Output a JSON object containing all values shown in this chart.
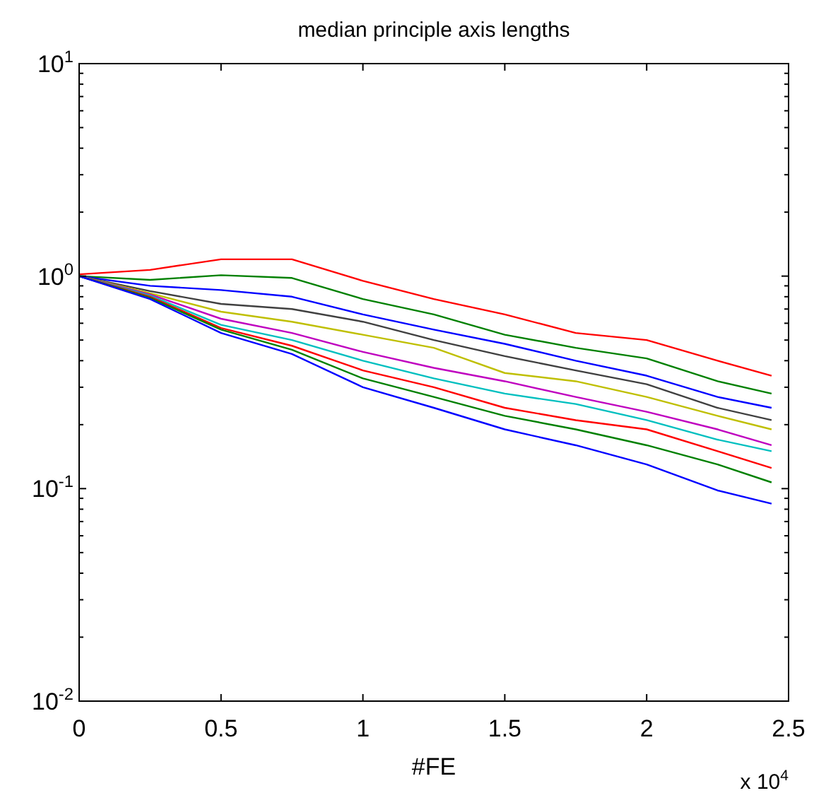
{
  "chart_data": {
    "type": "line",
    "title": "median principle axis lengths",
    "xlabel": "#FE",
    "log": "y",
    "grid": false,
    "x": [
      0,
      0.25,
      0.5,
      0.75,
      1,
      1.25,
      1.5,
      1.75,
      2,
      2.25,
      2.44
    ],
    "xlim": [
      0,
      2.5
    ],
    "xticks": [
      0,
      0.5,
      1,
      1.5,
      2,
      2.5
    ],
    "ylim": [
      0.01,
      10
    ],
    "yticks": [
      {
        "value": 0.01,
        "label": "10$^{-2}$"
      },
      {
        "value": 0.02,
        "label": null
      },
      {
        "value": 0.03,
        "label": null
      },
      {
        "value": 0.04,
        "label": null
      },
      {
        "value": 0.05,
        "label": null
      },
      {
        "value": 0.06,
        "label": null
      },
      {
        "value": 0.07,
        "label": null
      },
      {
        "value": 0.08,
        "label": null
      },
      {
        "value": 0.09,
        "label": null
      },
      {
        "value": 0.1,
        "label": "10$^{-1}$"
      },
      {
        "value": 0.2,
        "label": null
      },
      {
        "value": 0.3,
        "label": null
      },
      {
        "value": 0.4,
        "label": null
      },
      {
        "value": 0.5,
        "label": null
      },
      {
        "value": 0.6,
        "label": null
      },
      {
        "value": 0.7,
        "label": null
      },
      {
        "value": 0.8,
        "label": null
      },
      {
        "value": 0.9,
        "label": null
      },
      {
        "value": 1,
        "label": "10$^{0}$"
      },
      {
        "value": 2,
        "label": null
      },
      {
        "value": 3,
        "label": null
      },
      {
        "value": 4,
        "label": null
      },
      {
        "value": 5,
        "label": null
      },
      {
        "value": 6,
        "label": null
      },
      {
        "value": 7,
        "label": null
      },
      {
        "value": 8,
        "label": null
      },
      {
        "value": 9,
        "label": null
      },
      {
        "value": 10,
        "label": "10$^{1}$"
      }
    ],
    "annotations": [
      "x 10$^{4}$"
    ],
    "series": [
      {
        "color": "#ff0000",
        "values": [
          1.02,
          1.07,
          1.2,
          1.2,
          0.95,
          0.78,
          0.66,
          0.54,
          0.5,
          0.4,
          0.34
        ]
      },
      {
        "color": "#008000",
        "values": [
          1.0,
          0.96,
          1.01,
          0.98,
          0.78,
          0.66,
          0.53,
          0.46,
          0.41,
          0.32,
          0.28
        ]
      },
      {
        "color": "#0000ff",
        "values": [
          1.0,
          0.9,
          0.86,
          0.8,
          0.66,
          0.56,
          0.48,
          0.4,
          0.34,
          0.27,
          0.24
        ]
      },
      {
        "color": "#404040",
        "values": [
          1.0,
          0.85,
          0.74,
          0.7,
          0.61,
          0.5,
          0.42,
          0.36,
          0.31,
          0.24,
          0.21
        ]
      },
      {
        "color": "#bfbf00",
        "values": [
          1.0,
          0.83,
          0.68,
          0.61,
          0.53,
          0.46,
          0.35,
          0.32,
          0.27,
          0.22,
          0.19
        ]
      },
      {
        "color": "#bf00bf",
        "values": [
          1.0,
          0.82,
          0.63,
          0.54,
          0.44,
          0.37,
          0.32,
          0.27,
          0.23,
          0.19,
          0.16
        ]
      },
      {
        "color": "#00bfbf",
        "values": [
          1.0,
          0.81,
          0.59,
          0.5,
          0.4,
          0.33,
          0.28,
          0.25,
          0.21,
          0.17,
          0.15
        ]
      },
      {
        "color": "#ff0000",
        "values": [
          1.0,
          0.8,
          0.57,
          0.47,
          0.36,
          0.3,
          0.24,
          0.21,
          0.19,
          0.15,
          0.125
        ]
      },
      {
        "color": "#008000",
        "values": [
          1.0,
          0.79,
          0.56,
          0.45,
          0.33,
          0.27,
          0.22,
          0.19,
          0.16,
          0.13,
          0.107
        ]
      },
      {
        "color": "#0000ff",
        "values": [
          1.0,
          0.78,
          0.54,
          0.43,
          0.3,
          0.24,
          0.19,
          0.16,
          0.13,
          0.098,
          0.085
        ]
      }
    ]
  }
}
